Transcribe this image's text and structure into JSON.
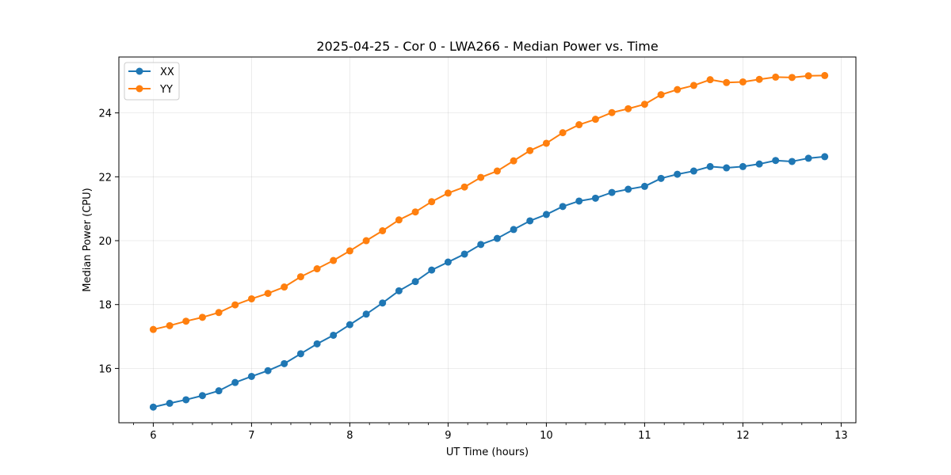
{
  "chart_data": {
    "type": "line",
    "title": "2025-04-25 - Cor 0 - LWA266 - Median Power vs. Time",
    "xlabel": "UT Time (hours)",
    "ylabel": "Median Power (CPU)",
    "xlim": [
      5.65,
      13.15
    ],
    "ylim": [
      14.3,
      25.75
    ],
    "xticks": [
      6,
      7,
      8,
      9,
      10,
      11,
      12,
      13
    ],
    "xtick_labels": [
      "6",
      "7",
      "8",
      "9",
      "10",
      "11",
      "12",
      "13"
    ],
    "xminor_step": 0.2,
    "yticks": [
      16,
      18,
      20,
      22,
      24
    ],
    "ytick_labels": [
      "16",
      "18",
      "20",
      "22",
      "24"
    ],
    "grid": true,
    "legend_position": "top-left",
    "x": [
      6.0,
      6.167,
      6.333,
      6.5,
      6.667,
      6.833,
      7.0,
      7.167,
      7.333,
      7.5,
      7.667,
      7.833,
      8.0,
      8.167,
      8.333,
      8.5,
      8.667,
      8.833,
      9.0,
      9.167,
      9.333,
      9.5,
      9.667,
      9.833,
      10.0,
      10.167,
      10.333,
      10.5,
      10.667,
      10.833,
      11.0,
      11.167,
      11.333,
      11.5,
      11.667,
      11.833,
      12.0,
      12.167,
      12.333,
      12.5,
      12.667,
      12.833
    ],
    "series": [
      {
        "name": "XX",
        "color": "#1f77b4",
        "values": [
          14.79,
          14.91,
          15.02,
          15.15,
          15.3,
          15.56,
          15.75,
          15.93,
          16.15,
          16.46,
          16.77,
          17.04,
          17.37,
          17.7,
          18.05,
          18.43,
          18.72,
          19.08,
          19.33,
          19.58,
          19.88,
          20.07,
          20.35,
          20.62,
          20.82,
          21.07,
          21.24,
          21.33,
          21.51,
          21.61,
          21.7,
          21.95,
          22.08,
          22.18,
          22.32,
          22.28,
          22.32,
          22.4,
          22.51,
          22.48,
          22.58,
          22.63
        ]
      },
      {
        "name": "YY",
        "color": "#ff7f0e",
        "values": [
          17.22,
          17.34,
          17.48,
          17.6,
          17.75,
          17.99,
          18.18,
          18.35,
          18.55,
          18.87,
          19.12,
          19.38,
          19.68,
          20.0,
          20.31,
          20.65,
          20.9,
          21.22,
          21.49,
          21.68,
          21.98,
          22.18,
          22.5,
          22.82,
          23.05,
          23.38,
          23.63,
          23.8,
          24.01,
          24.13,
          24.27,
          24.57,
          24.73,
          24.86,
          25.04,
          24.95,
          24.97,
          25.05,
          25.12,
          25.11,
          25.16,
          25.17
        ]
      }
    ]
  }
}
